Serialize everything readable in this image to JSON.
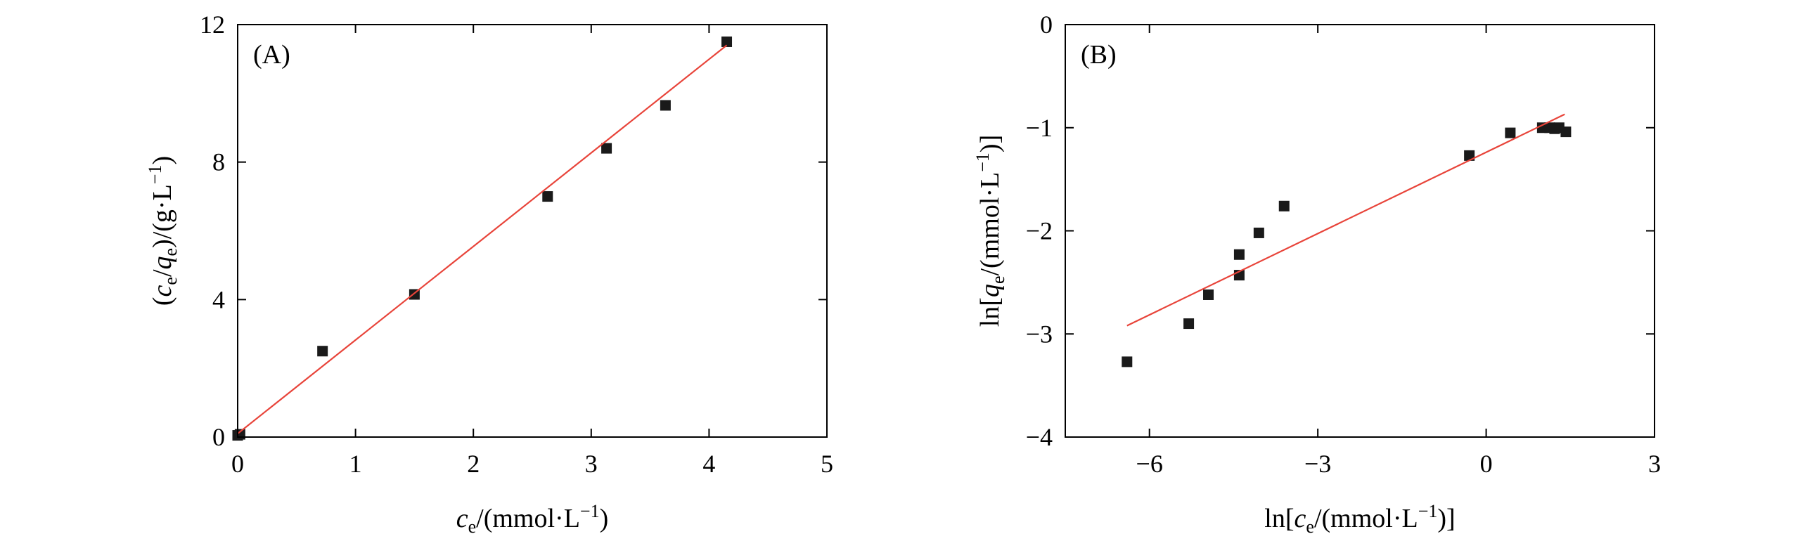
{
  "chart_data": [
    {
      "type": "scatter",
      "panel_label": "(A)",
      "xlabel": {
        "pre": "c",
        "sub": "e",
        "post": "/(mmol·L",
        "sup": "−1",
        "end": ")"
      },
      "ylabel": {
        "a": "(",
        "b": "c",
        "b_sub": "e",
        "c": "/",
        "d": "q",
        "d_sub": "e",
        "e": ")/(g·L",
        "sup": "−1",
        "f": ")"
      },
      "xlim": [
        0,
        5
      ],
      "ylim": [
        0,
        12
      ],
      "xticks": [
        0,
        1,
        2,
        3,
        4,
        5
      ],
      "yticks": [
        0,
        4,
        8,
        12
      ],
      "grid": false,
      "points": [
        {
          "x": 0.0,
          "y": 0.05
        },
        {
          "x": 0.02,
          "y": 0.08
        },
        {
          "x": 0.72,
          "y": 2.5
        },
        {
          "x": 1.5,
          "y": 4.15
        },
        {
          "x": 2.63,
          "y": 7.0
        },
        {
          "x": 3.13,
          "y": 8.4
        },
        {
          "x": 3.63,
          "y": 9.65
        },
        {
          "x": 4.15,
          "y": 11.5
        }
      ],
      "fit_line": {
        "x": [
          0.0,
          4.15
        ],
        "y": [
          0.1,
          11.4
        ],
        "color": "#e8443a"
      },
      "marker_color": "#1a1a1a"
    },
    {
      "type": "scatter",
      "panel_label": "(B)",
      "xlabel": {
        "pre": "ln[",
        "c": "c",
        "sub": "e",
        "post": "/(mmol·L",
        "sup": "−1",
        "end": ")]"
      },
      "ylabel": {
        "pre": "ln[",
        "q": "q",
        "sub": "e",
        "post": "/(mmol·L",
        "sup": "−1",
        "end": ")]"
      },
      "xlim": [
        -7.5,
        3
      ],
      "ylim": [
        -4,
        0
      ],
      "xticks": [
        -6,
        -3,
        0,
        3
      ],
      "yticks": [
        -4,
        -3,
        -2,
        -1,
        0
      ],
      "grid": false,
      "points": [
        {
          "x": -6.4,
          "y": -3.27
        },
        {
          "x": -5.3,
          "y": -2.9
        },
        {
          "x": -4.95,
          "y": -2.62
        },
        {
          "x": -4.4,
          "y": -2.43
        },
        {
          "x": -4.4,
          "y": -2.23
        },
        {
          "x": -4.05,
          "y": -2.02
        },
        {
          "x": -3.6,
          "y": -1.76
        },
        {
          "x": -0.3,
          "y": -1.27
        },
        {
          "x": 0.43,
          "y": -1.05
        },
        {
          "x": 1.0,
          "y": -1.0
        },
        {
          "x": 1.13,
          "y": -1.0
        },
        {
          "x": 1.22,
          "y": -1.01
        },
        {
          "x": 1.3,
          "y": -1.0
        },
        {
          "x": 1.42,
          "y": -1.04
        }
      ],
      "fit_line": {
        "x": [
          -6.4,
          1.4
        ],
        "y": [
          -2.92,
          -0.87
        ],
        "color": "#e8443a"
      },
      "marker_color": "#1a1a1a"
    }
  ]
}
